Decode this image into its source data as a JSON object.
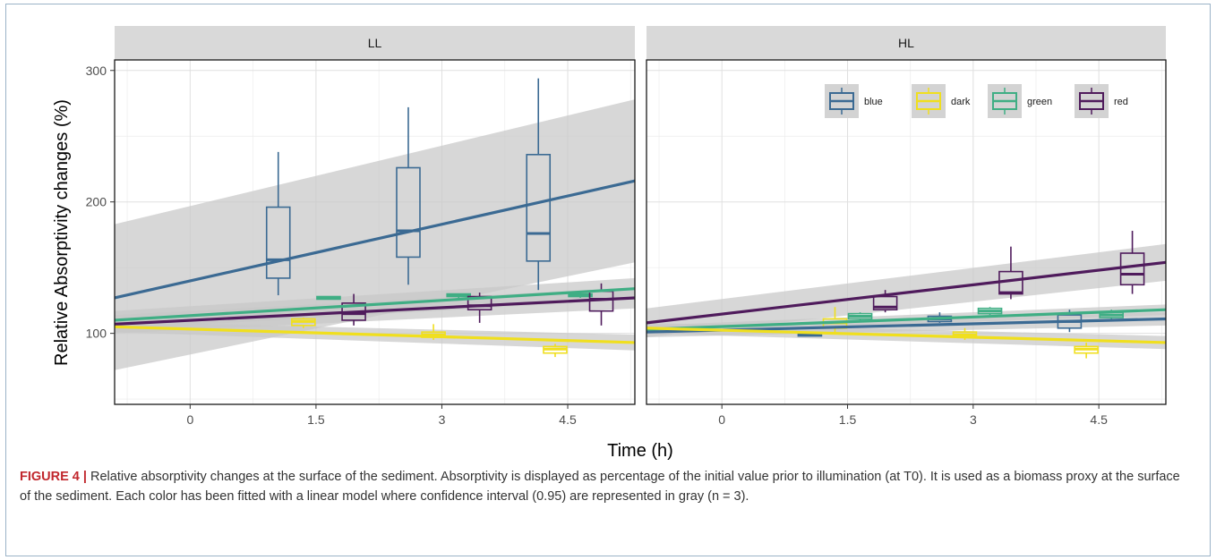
{
  "figure": {
    "ylabel": "Relative Absorptivity changes (%)",
    "xlabel": "Time (h)",
    "caption_label": "FIGURE 4 |",
    "caption_text": "Relative absorptivity changes at the surface of the sediment. Absorptivity is displayed as percentage of the initial value prior to illumination (at T0). It is used as a biomass proxy at the surface of the sediment. Each color has been fitted with a linear model where confidence interval (0.95) are represented in gray (n = 3)."
  },
  "chart_data": {
    "type": "boxplot with linear fits",
    "xlim": [
      -0.9,
      5.3
    ],
    "ylim": [
      46,
      308
    ],
    "x_ticks": [
      0,
      1.5,
      3,
      4.5
    ],
    "x_tick_labels": [
      "0",
      "1.5",
      "3",
      "4.5"
    ],
    "y_ticks": [
      100,
      200,
      300
    ],
    "y_tick_labels": [
      "100",
      "200",
      "300"
    ],
    "grid": true,
    "legend": {
      "position": "top-right",
      "entries": [
        "blue",
        "dark",
        "green",
        "red"
      ]
    },
    "colors": {
      "blue": "#3b6a93",
      "dark": "#f0df1e",
      "green": "#3fae84",
      "red": "#4f1b5c",
      "ci": "#c8c8c8",
      "strip": "#d9d9d9"
    },
    "panels": [
      {
        "strip": "LL",
        "boxes": [
          {
            "series": "blue",
            "x": 1.05,
            "low": 129,
            "q1": 142,
            "median": 156,
            "q3": 196,
            "high": 238
          },
          {
            "series": "blue",
            "x": 2.6,
            "low": 137,
            "q1": 158,
            "median": 178,
            "q3": 226,
            "high": 272
          },
          {
            "series": "blue",
            "x": 4.15,
            "low": 133,
            "q1": 155,
            "median": 176,
            "q3": 236,
            "high": 294
          },
          {
            "series": "dark",
            "x": 1.35,
            "low": 104,
            "q1": 106,
            "median": 109,
            "q3": 111,
            "high": 112
          },
          {
            "series": "dark",
            "x": 2.9,
            "low": 95,
            "q1": 97,
            "median": 99,
            "q3": 101,
            "high": 107
          },
          {
            "series": "dark",
            "x": 4.35,
            "low": 82,
            "q1": 85,
            "median": 88,
            "q3": 90,
            "high": 92
          },
          {
            "series": "green",
            "x": 1.65,
            "low": 126,
            "q1": 126,
            "median": 127,
            "q3": 128,
            "high": 128
          },
          {
            "series": "green",
            "x": 3.2,
            "low": 127,
            "q1": 128,
            "median": 129,
            "q3": 130,
            "high": 130
          },
          {
            "series": "green",
            "x": 4.65,
            "low": 127,
            "q1": 128,
            "median": 129,
            "q3": 130,
            "high": 131
          },
          {
            "series": "red",
            "x": 1.95,
            "low": 106,
            "q1": 110,
            "median": 115,
            "q3": 123,
            "high": 130
          },
          {
            "series": "red",
            "x": 3.45,
            "low": 108,
            "q1": 118,
            "median": 121,
            "q3": 128,
            "high": 131
          },
          {
            "series": "red",
            "x": 4.9,
            "low": 106,
            "q1": 117,
            "median": 126,
            "q3": 132,
            "high": 138
          }
        ],
        "fits": [
          {
            "series": "blue",
            "y_start": 127,
            "y_end": 216,
            "ci_lo_start": 72,
            "ci_lo_end": 154,
            "ci_hi_start": 183,
            "ci_hi_end": 278
          },
          {
            "series": "red",
            "y_start": 107,
            "y_end": 127,
            "ci_lo_start": 100,
            "ci_lo_end": 119,
            "ci_hi_start": 114,
            "ci_hi_end": 135
          },
          {
            "series": "green",
            "y_start": 110,
            "y_end": 134,
            "ci_lo_start": 103,
            "ci_lo_end": 126,
            "ci_hi_start": 117,
            "ci_hi_end": 142
          },
          {
            "series": "dark",
            "y_start": 105,
            "y_end": 93,
            "ci_lo_start": 101,
            "ci_lo_end": 87,
            "ci_hi_start": 109,
            "ci_hi_end": 99
          }
        ]
      },
      {
        "strip": "HL",
        "boxes": [
          {
            "series": "blue",
            "x": 1.05,
            "low": 98,
            "q1": 98,
            "median": 99,
            "q3": 100,
            "high": 101
          },
          {
            "series": "blue",
            "x": 2.6,
            "low": 108,
            "q1": 109,
            "median": 111,
            "q3": 113,
            "high": 116
          },
          {
            "series": "blue",
            "x": 4.15,
            "low": 101,
            "q1": 104,
            "median": 109,
            "q3": 114,
            "high": 118
          },
          {
            "series": "dark",
            "x": 1.35,
            "low": 100,
            "q1": 104,
            "median": 108,
            "q3": 111,
            "high": 120
          },
          {
            "series": "dark",
            "x": 2.9,
            "low": 95,
            "q1": 97,
            "median": 99,
            "q3": 101,
            "high": 104
          },
          {
            "series": "dark",
            "x": 4.35,
            "low": 81,
            "q1": 85,
            "median": 88,
            "q3": 90,
            "high": 93
          },
          {
            "series": "green",
            "x": 1.65,
            "low": 110,
            "q1": 111,
            "median": 113,
            "q3": 115,
            "high": 116
          },
          {
            "series": "green",
            "x": 3.2,
            "low": 114,
            "q1": 115,
            "median": 117,
            "q3": 119,
            "high": 120
          },
          {
            "series": "green",
            "x": 4.65,
            "low": 110,
            "q1": 112,
            "median": 114,
            "q3": 116,
            "high": 118
          },
          {
            "series": "red",
            "x": 1.95,
            "low": 116,
            "q1": 118,
            "median": 120,
            "q3": 128,
            "high": 133
          },
          {
            "series": "red",
            "x": 3.45,
            "low": 126,
            "q1": 130,
            "median": 131,
            "q3": 147,
            "high": 166
          },
          {
            "series": "red",
            "x": 4.9,
            "low": 130,
            "q1": 137,
            "median": 145,
            "q3": 161,
            "high": 178
          }
        ],
        "fits": [
          {
            "series": "red",
            "y_start": 108,
            "y_end": 154,
            "ci_lo_start": 97,
            "ci_lo_end": 140,
            "ci_hi_start": 119,
            "ci_hi_end": 168
          },
          {
            "series": "green",
            "y_start": 103,
            "y_end": 118,
            "ci_lo_start": 100,
            "ci_lo_end": 114,
            "ci_hi_start": 106,
            "ci_hi_end": 122
          },
          {
            "series": "blue",
            "y_start": 101,
            "y_end": 111,
            "ci_lo_start": 97,
            "ci_lo_end": 106,
            "ci_hi_start": 105,
            "ci_hi_end": 116
          },
          {
            "series": "dark",
            "y_start": 104,
            "y_end": 93,
            "ci_lo_start": 100,
            "ci_lo_end": 88,
            "ci_hi_start": 108,
            "ci_hi_end": 98
          }
        ]
      }
    ]
  }
}
